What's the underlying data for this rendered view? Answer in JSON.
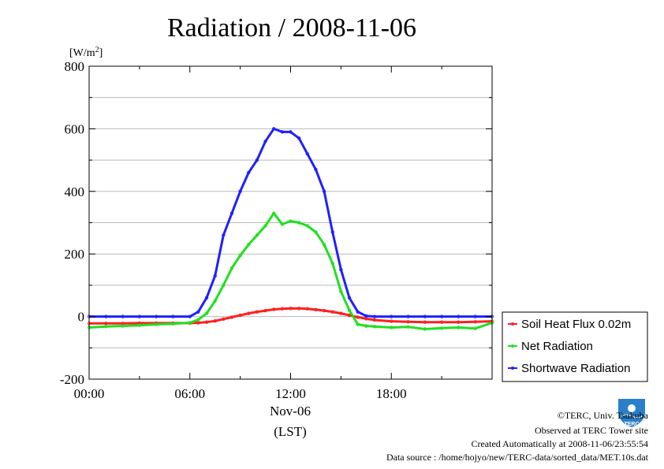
{
  "title": "Radiation / 2008-11-06",
  "footer": {
    "copyright": "©TERC, Univ. Tsukuba",
    "observed": "Observed at TERC Tower site",
    "created": "Created Automatically at 2008-11-06/23:55:54",
    "source": "Data source : /home/hojyo/new/TERC-data/sorted_data/MET.10s.dat"
  },
  "logo_text": "TERC",
  "chart_data": {
    "type": "line",
    "title": "Radiation / 2008-11-06",
    "ylabel_unit": "[W/m",
    "ylabel_unit_sup": "2",
    "ylabel_unit_close": "]",
    "xlabel_date": "Nov-06",
    "xlabel": "(LST)",
    "ylim": [
      -200,
      800
    ],
    "yticks": [
      -200,
      0,
      200,
      400,
      600,
      800
    ],
    "ytick_labels": [
      "-200",
      "0",
      "200",
      "400",
      "600",
      "800"
    ],
    "xlim": [
      0,
      24
    ],
    "xticks": [
      0,
      6,
      12,
      18
    ],
    "xtick_labels": [
      "00:00",
      "06:00",
      "12:00",
      "18:00"
    ],
    "grid": true,
    "legend_position": "right",
    "series": [
      {
        "name": "Soil Heat Flux 0.02m",
        "color": "#ff2020",
        "x": [
          0,
          1,
          2,
          3,
          4,
          5,
          6,
          6.5,
          7,
          7.5,
          8,
          8.5,
          9,
          9.5,
          10,
          10.5,
          11,
          11.5,
          12,
          12.5,
          13,
          13.5,
          14,
          14.5,
          15,
          15.5,
          16,
          16.5,
          17,
          18,
          19,
          20,
          21,
          22,
          23,
          24
        ],
        "y": [
          -22,
          -22,
          -22,
          -21,
          -21,
          -21,
          -21,
          -20,
          -18,
          -14,
          -8,
          -2,
          4,
          10,
          15,
          19,
          23,
          25,
          26,
          26,
          25,
          22,
          19,
          15,
          10,
          4,
          -2,
          -7,
          -11,
          -15,
          -17,
          -18,
          -18,
          -18,
          -17,
          -15
        ]
      },
      {
        "name": "Net Radiation",
        "color": "#20e020",
        "x": [
          0,
          1,
          2,
          3,
          4,
          5,
          6,
          6.5,
          7,
          7.5,
          8,
          8.5,
          9,
          9.5,
          10,
          10.5,
          11,
          11.5,
          12,
          12.5,
          13,
          13.5,
          14,
          14.5,
          15,
          15.5,
          16,
          16.5,
          17,
          18,
          19,
          20,
          21,
          22,
          23,
          24
        ],
        "y": [
          -35,
          -32,
          -30,
          -28,
          -25,
          -23,
          -20,
          -10,
          10,
          50,
          100,
          155,
          195,
          230,
          260,
          290,
          330,
          295,
          305,
          300,
          290,
          270,
          230,
          170,
          80,
          20,
          -25,
          -30,
          -32,
          -35,
          -33,
          -40,
          -37,
          -35,
          -38,
          -20
        ]
      },
      {
        "name": "Shortwave Radiation",
        "color": "#2020ff",
        "x": [
          0,
          1,
          2,
          3,
          4,
          5,
          6,
          6.5,
          7,
          7.5,
          8,
          8.5,
          9,
          9.5,
          10,
          10.5,
          11,
          11.5,
          12,
          12.5,
          13,
          13.5,
          14,
          14.5,
          15,
          15.5,
          16,
          16.5,
          17,
          18,
          19,
          20,
          21,
          22,
          23,
          24
        ],
        "y": [
          0,
          0,
          0,
          0,
          0,
          0,
          0,
          15,
          60,
          130,
          260,
          330,
          400,
          460,
          500,
          560,
          600,
          590,
          590,
          570,
          520,
          470,
          400,
          270,
          150,
          60,
          15,
          2,
          0,
          0,
          0,
          0,
          0,
          0,
          0,
          0
        ]
      }
    ]
  }
}
